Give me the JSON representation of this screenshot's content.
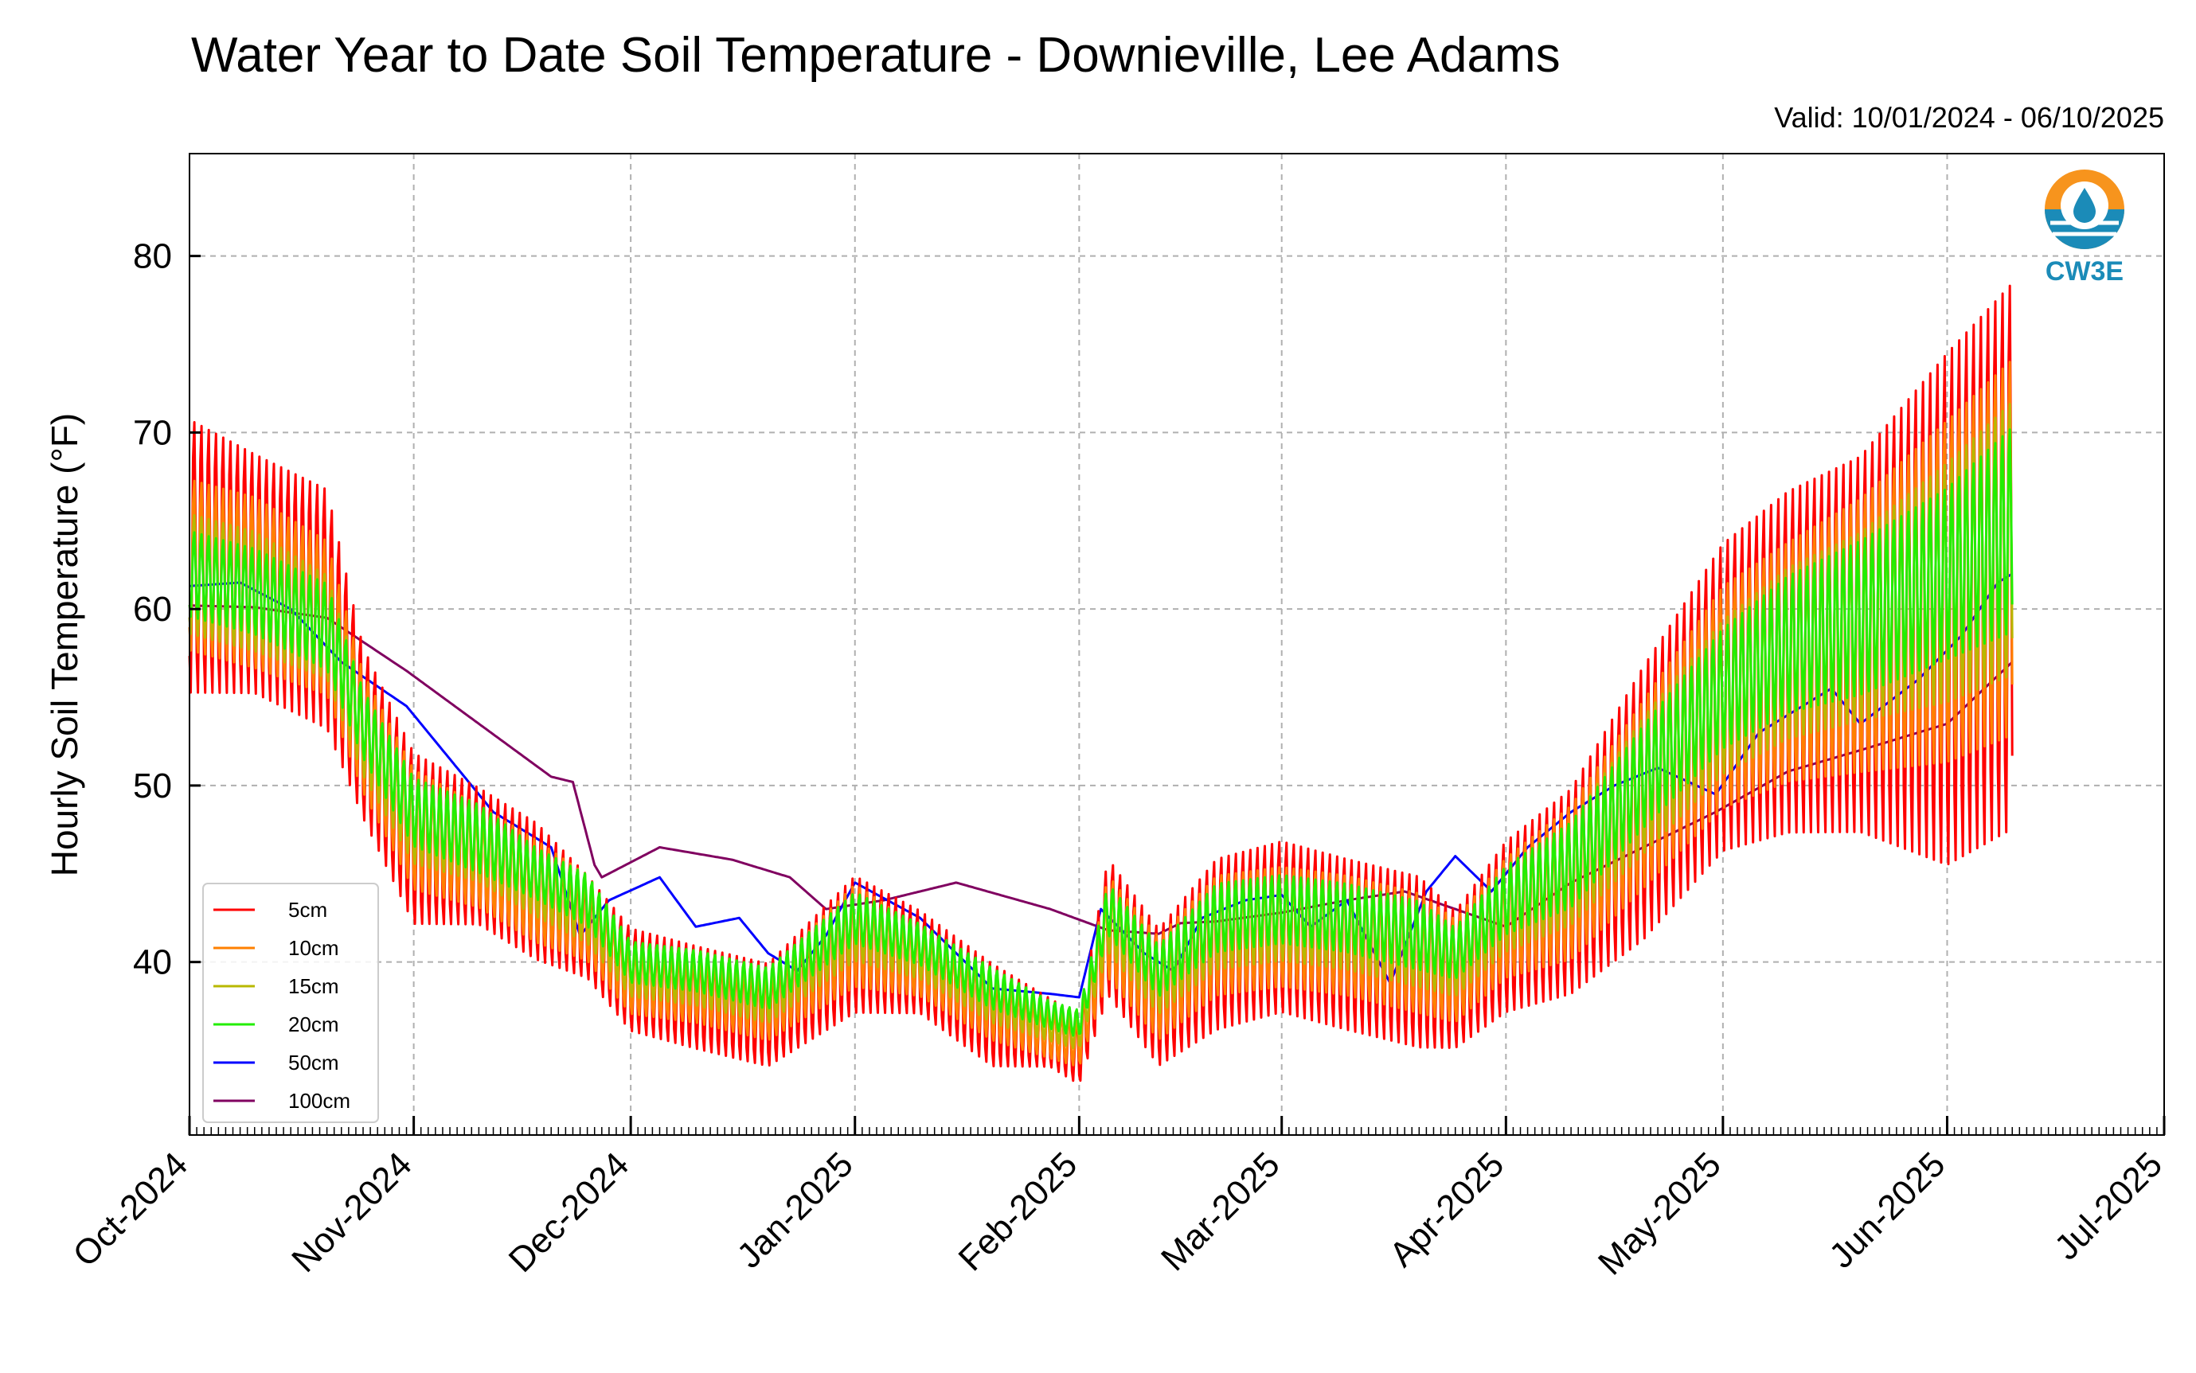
{
  "chart_data": {
    "type": "line",
    "title": "Water Year to Date Soil Temperature - Downieville, Lee Adams",
    "subtitle": "Valid: 10/01/2024 - 06/10/2025",
    "xlabel": "",
    "ylabel": "Hourly Soil Temperature (°F)",
    "x_tick_labels": [
      "Oct-2024",
      "Nov-2024",
      "Dec-2024",
      "Jan-2025",
      "Feb-2025",
      "Mar-2025",
      "Apr-2025",
      "May-2025",
      "Jun-2025",
      "Jul-2025"
    ],
    "x_range": [
      "2024-10-01",
      "2025-07-01"
    ],
    "y_ticks": [
      40,
      50,
      60,
      70,
      80
    ],
    "ylim": [
      30.2,
      85.8
    ],
    "grid": true,
    "legend_position": "lower-left",
    "logo_text": "CW3E",
    "series": [
      {
        "name": "5cm",
        "color": "#ff0000",
        "date": [
          "2024-10-01",
          "2024-10-10",
          "2024-10-20",
          "2024-10-25",
          "2024-11-01",
          "2024-11-10",
          "2024-11-18",
          "2024-11-25",
          "2024-12-01",
          "2024-12-10",
          "2024-12-20",
          "2025-01-01",
          "2025-01-10",
          "2025-01-20",
          "2025-01-28",
          "2025-02-01",
          "2025-02-05",
          "2025-02-12",
          "2025-02-20",
          "2025-03-01",
          "2025-03-10",
          "2025-03-20",
          "2025-03-25",
          "2025-04-01",
          "2025-04-10",
          "2025-04-20",
          "2025-05-01",
          "2025-05-10",
          "2025-05-20",
          "2025-06-01",
          "2025-06-10"
        ],
        "mean": [
          63,
          62,
          60,
          53,
          47,
          46,
          44,
          42,
          39,
          38,
          37,
          41,
          40,
          37,
          36,
          35,
          42,
          38,
          41,
          42,
          41,
          40,
          39,
          42,
          44,
          49,
          55,
          57,
          58,
          60,
          63
        ],
        "amp": [
          8,
          7,
          7,
          5,
          5,
          4,
          4,
          3,
          3,
          3,
          3,
          4,
          3,
          3,
          2,
          2,
          4,
          4,
          5,
          5,
          5,
          5,
          4,
          5,
          6,
          8,
          9,
          10,
          11,
          15,
          16
        ]
      },
      {
        "name": "10cm",
        "color": "#ff8000",
        "date": [
          "2024-10-01",
          "2024-10-10",
          "2024-10-20",
          "2024-10-25",
          "2024-11-01",
          "2024-11-10",
          "2024-11-18",
          "2024-11-25",
          "2024-12-01",
          "2024-12-10",
          "2024-12-20",
          "2025-01-01",
          "2025-01-10",
          "2025-01-20",
          "2025-01-28",
          "2025-02-01",
          "2025-02-05",
          "2025-02-12",
          "2025-02-20",
          "2025-03-01",
          "2025-03-10",
          "2025-03-20",
          "2025-03-25",
          "2025-04-01",
          "2025-04-10",
          "2025-04-20",
          "2025-05-01",
          "2025-05-10",
          "2025-05-20",
          "2025-06-01",
          "2025-06-10"
        ],
        "mean": [
          62.5,
          61.5,
          59.5,
          53,
          47.5,
          46,
          44,
          42.5,
          39,
          38.5,
          37.5,
          41.5,
          40,
          37.5,
          36,
          35.5,
          42,
          38.5,
          41.5,
          42,
          41.5,
          40.5,
          39.5,
          42.5,
          44.5,
          49.5,
          55,
          57,
          58.5,
          61,
          63.5
        ],
        "amp": [
          5,
          5,
          4.5,
          3.5,
          3.5,
          3,
          3,
          2.5,
          2,
          2,
          2,
          3,
          2,
          2,
          1.5,
          1.5,
          3,
          3,
          3.5,
          3.5,
          3.5,
          3.5,
          3,
          3.5,
          4.5,
          5.5,
          6.5,
          7,
          8,
          10,
          11
        ]
      },
      {
        "name": "15cm",
        "color": "#b8b800",
        "date": [
          "2024-10-01",
          "2024-10-10",
          "2024-10-20",
          "2024-10-25",
          "2024-11-01",
          "2024-11-10",
          "2024-11-18",
          "2024-11-25",
          "2024-12-01",
          "2024-12-10",
          "2024-12-20",
          "2025-01-01",
          "2025-01-10",
          "2025-01-20",
          "2025-01-28",
          "2025-02-01",
          "2025-02-05",
          "2025-02-12",
          "2025-02-20",
          "2025-03-01",
          "2025-03-10",
          "2025-03-20",
          "2025-03-25",
          "2025-04-01",
          "2025-04-10",
          "2025-04-20",
          "2025-05-01",
          "2025-05-10",
          "2025-05-20",
          "2025-06-01",
          "2025-06-10"
        ],
        "mean": [
          62,
          61,
          59,
          53,
          48,
          46.5,
          44.5,
          43,
          39.5,
          39,
          38,
          42,
          40.5,
          38,
          36.5,
          36,
          42.5,
          39,
          42,
          42.5,
          42,
          41,
          40,
          43,
          45,
          50,
          55,
          57.5,
          59,
          61.5,
          64
        ],
        "amp": [
          3.5,
          3.5,
          3,
          2.5,
          2.5,
          2,
          2,
          2,
          1.5,
          1.5,
          1.5,
          2,
          1.5,
          1.5,
          1,
          1,
          2,
          2,
          2.5,
          2.5,
          2.5,
          2.5,
          2,
          2.5,
          3,
          4,
          4.5,
          5,
          5.5,
          7,
          8
        ]
      },
      {
        "name": "20cm",
        "color": "#22ee00",
        "date": [
          "2024-10-01",
          "2024-10-10",
          "2024-10-20",
          "2024-10-25",
          "2024-11-01",
          "2024-11-10",
          "2024-11-18",
          "2024-11-25",
          "2024-12-01",
          "2024-12-10",
          "2024-12-20",
          "2025-01-01",
          "2025-01-10",
          "2025-01-20",
          "2025-01-28",
          "2025-02-01",
          "2025-02-05",
          "2025-02-12",
          "2025-02-20",
          "2025-03-01",
          "2025-03-10",
          "2025-03-20",
          "2025-03-25",
          "2025-04-01",
          "2025-04-10",
          "2025-04-20",
          "2025-05-01",
          "2025-05-10",
          "2025-05-20",
          "2025-06-01",
          "2025-06-10"
        ],
        "mean": [
          62,
          61,
          59,
          53.5,
          48.5,
          47,
          45,
          43.5,
          40,
          39.5,
          38.5,
          42.5,
          41,
          38.5,
          37,
          36.5,
          43,
          39.5,
          42.5,
          43,
          42.5,
          41.5,
          40.5,
          43.5,
          45.5,
          50.5,
          55.5,
          58,
          59.5,
          62,
          64.5
        ],
        "amp": [
          2.5,
          2.5,
          2.5,
          2,
          2,
          2,
          1.5,
          1.5,
          1.2,
          1.2,
          1.2,
          1.5,
          1.2,
          1.2,
          0.8,
          0.8,
          1.5,
          1.5,
          2,
          2,
          2,
          2,
          1.5,
          2,
          2.5,
          3,
          3.5,
          4,
          4.5,
          5,
          6
        ]
      },
      {
        "name": "50cm",
        "color": "#0000ff",
        "date": [
          "2024-10-01",
          "2024-10-08",
          "2024-10-15",
          "2024-10-22",
          "2024-10-31",
          "2024-11-05",
          "2024-11-12",
          "2024-11-20",
          "2024-11-24",
          "2024-11-28",
          "2024-12-05",
          "2024-12-10",
          "2024-12-16",
          "2024-12-20",
          "2024-12-24",
          "2024-12-28",
          "2025-01-01",
          "2025-01-10",
          "2025-01-20",
          "2025-01-28",
          "2025-02-01",
          "2025-02-04",
          "2025-02-10",
          "2025-02-14",
          "2025-02-18",
          "2025-02-24",
          "2025-03-01",
          "2025-03-05",
          "2025-03-10",
          "2025-03-16",
          "2025-03-21",
          "2025-03-25",
          "2025-03-30",
          "2025-04-04",
          "2025-04-10",
          "2025-04-16",
          "2025-04-22",
          "2025-04-30",
          "2025-05-06",
          "2025-05-12",
          "2025-05-16",
          "2025-05-20",
          "2025-05-28",
          "2025-06-03",
          "2025-06-08",
          "2025-06-10"
        ],
        "values": [
          61.3,
          61.5,
          60,
          57,
          54.5,
          52,
          48.5,
          46.5,
          41.5,
          43.5,
          44.8,
          42,
          42.5,
          40.5,
          39.5,
          41.5,
          44.5,
          42.5,
          38.5,
          38.2,
          38.0,
          43.0,
          40.5,
          39.5,
          42.5,
          43.5,
          43.8,
          42.0,
          43.5,
          38.8,
          44.0,
          46.0,
          44.0,
          46.5,
          48.5,
          50.0,
          51.0,
          49.5,
          53.0,
          54.5,
          55.5,
          53.5,
          56.0,
          58.5,
          61.5,
          62.0
        ]
      },
      {
        "name": "100cm",
        "color": "#800060",
        "date": [
          "2024-10-01",
          "2024-10-10",
          "2024-10-20",
          "2024-10-31",
          "2024-11-10",
          "2024-11-20",
          "2024-11-23",
          "2024-11-26",
          "2024-11-27",
          "2024-12-05",
          "2024-12-15",
          "2024-12-23",
          "2024-12-28",
          "2025-01-05",
          "2025-01-15",
          "2025-01-28",
          "2025-02-05",
          "2025-02-12",
          "2025-02-15",
          "2025-02-20",
          "2025-03-01",
          "2025-03-10",
          "2025-03-18",
          "2025-03-25",
          "2025-04-01",
          "2025-04-10",
          "2025-04-20",
          "2025-04-30",
          "2025-05-10",
          "2025-05-20",
          "2025-06-01",
          "2025-06-10"
        ],
        "values": [
          60.2,
          60.1,
          59.5,
          56.5,
          53.5,
          50.5,
          50.2,
          45.5,
          44.8,
          46.5,
          45.8,
          44.8,
          43.0,
          43.5,
          44.5,
          43.0,
          41.8,
          41.6,
          42.2,
          42.3,
          42.8,
          43.5,
          44.0,
          43.0,
          42.0,
          44.5,
          46.5,
          48.5,
          50.8,
          52.0,
          53.5,
          57.0
        ]
      }
    ]
  }
}
